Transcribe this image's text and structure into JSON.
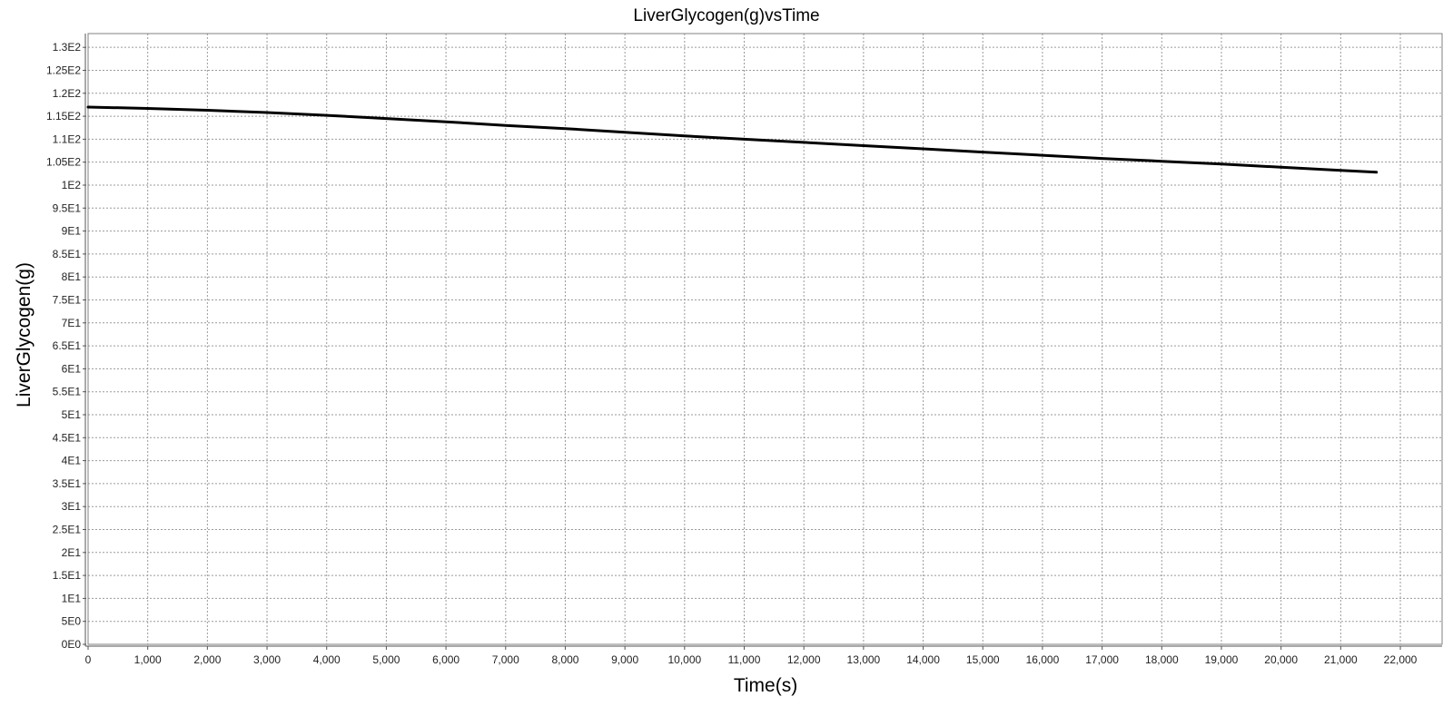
{
  "chart_data": {
    "type": "line",
    "title": "LiverGlycogen(g)vsTime",
    "xlabel": "Time(s)",
    "ylabel": "LiverGlycogen(g)",
    "xlim": [
      0,
      22700
    ],
    "ylim": [
      0,
      133
    ],
    "grid": true,
    "x_ticks": [
      0,
      1000,
      2000,
      3000,
      4000,
      5000,
      6000,
      7000,
      8000,
      9000,
      10000,
      11000,
      12000,
      13000,
      14000,
      15000,
      16000,
      17000,
      18000,
      19000,
      20000,
      21000,
      22000
    ],
    "x_tick_labels": [
      "0",
      "1,000",
      "2,000",
      "3,000",
      "4,000",
      "5,000",
      "6,000",
      "7,000",
      "8,000",
      "9,000",
      "10,000",
      "11,000",
      "12,000",
      "13,000",
      "14,000",
      "15,000",
      "16,000",
      "17,000",
      "18,000",
      "19,000",
      "20,000",
      "21,000",
      "22,000"
    ],
    "y_ticks": [
      0,
      5,
      10,
      15,
      20,
      25,
      30,
      35,
      40,
      45,
      50,
      55,
      60,
      65,
      70,
      75,
      80,
      85,
      90,
      95,
      100,
      105,
      110,
      115,
      120,
      125,
      130
    ],
    "y_tick_labels": [
      "0E0",
      "5E0",
      "1E1",
      "1.5E1",
      "2E1",
      "2.5E1",
      "3E1",
      "3.5E1",
      "4E1",
      "4.5E1",
      "5E1",
      "5.5E1",
      "6E1",
      "6.5E1",
      "7E1",
      "7.5E1",
      "8E1",
      "8.5E1",
      "9E1",
      "9.5E1",
      "1E2",
      "1.05E2",
      "1.1E2",
      "1.15E2",
      "1.2E2",
      "1.25E2",
      "1.3E2"
    ],
    "series": [
      {
        "color": "#000000",
        "x": [
          0,
          1000,
          2000,
          3000,
          4000,
          5000,
          6000,
          7000,
          8000,
          9000,
          10000,
          11000,
          12000,
          13000,
          14000,
          15000,
          16000,
          17000,
          18000,
          19000,
          20000,
          21000,
          21600
        ],
        "y": [
          117.0,
          116.7,
          116.3,
          115.8,
          115.2,
          114.5,
          113.8,
          113.0,
          112.3,
          111.5,
          110.7,
          110.0,
          109.3,
          108.6,
          107.9,
          107.2,
          106.5,
          105.8,
          105.2,
          104.6,
          103.9,
          103.2,
          102.8
        ]
      }
    ]
  }
}
